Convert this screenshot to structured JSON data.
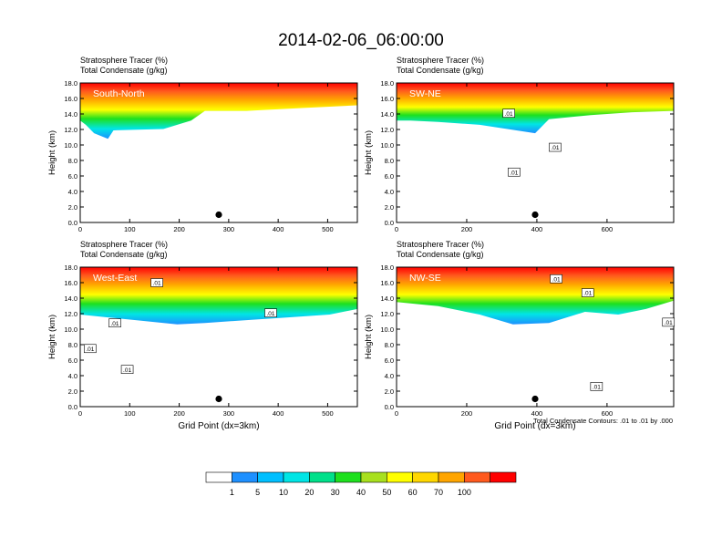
{
  "title": "2014-02-06_06:00:00",
  "colorbar": {
    "colors": [
      "#ffffff",
      "#1e90ff",
      "#00bfff",
      "#00e5e5",
      "#00e08a",
      "#1ee01e",
      "#a8e01e",
      "#ffff00",
      "#ffd700",
      "#ffa500",
      "#ff5a1e",
      "#ff0000"
    ],
    "labels": [
      "1",
      "5",
      "10",
      "20",
      "30",
      "40",
      "50",
      "60",
      "70",
      "100"
    ]
  },
  "contour_note": "Total Condensate Contours: .01 to .01 by .000",
  "chart_data": [
    {
      "type": "heatmap",
      "title_line1": "Stratosphere Tracer   (%)",
      "title_line2": "Total Condensate   (g/kg)",
      "panel_label": "South-North",
      "ylabel": "Height (km)",
      "xlabel": "",
      "xlim": [
        0,
        560
      ],
      "ylim": [
        0,
        18
      ],
      "xticks": [
        "0",
        "100",
        "200",
        "300",
        "400",
        "500"
      ],
      "xtick_values": [
        0,
        100,
        200,
        300,
        400,
        500
      ],
      "yticks": [
        "0.0",
        "2.0",
        "4.0",
        "6.0",
        "8.0",
        "10.0",
        "12.0",
        "14.0",
        "16.0",
        "18.0"
      ],
      "marker_x": 280,
      "contour_labels": []
    },
    {
      "type": "heatmap",
      "title_line1": "Stratosphere Tracer   (%)",
      "title_line2": "Total Condensate   (g/kg)",
      "panel_label": "SW-NE",
      "ylabel": "Height (km)",
      "xlabel": "",
      "xlim": [
        0,
        790
      ],
      "ylim": [
        0,
        18
      ],
      "xticks": [
        "0",
        "200",
        "400",
        "600"
      ],
      "xtick_values": [
        0,
        200,
        400,
        600
      ],
      "yticks": [
        "0.0",
        "2.0",
        "4.0",
        "6.0",
        "8.0",
        "10.0",
        "12.0",
        "14.0",
        "16.0",
        "18.0"
      ],
      "marker_x": 395,
      "contour_labels": [
        {
          "text": ".01",
          "x": 320,
          "y": 14.1
        },
        {
          "text": ".01",
          "x": 335,
          "y": 6.5
        },
        {
          "text": ".01",
          "x": 452,
          "y": 9.7
        }
      ]
    },
    {
      "type": "heatmap",
      "title_line1": "Stratosphere Tracer   (%)",
      "title_line2": "Total Condensate   (g/kg)",
      "panel_label": "West-East",
      "ylabel": "Height (km)",
      "xlabel": "Grid Point (dx=3km)",
      "xlim": [
        0,
        560
      ],
      "ylim": [
        0,
        18
      ],
      "xticks": [
        "0",
        "100",
        "200",
        "300",
        "400",
        "500"
      ],
      "xtick_values": [
        0,
        100,
        200,
        300,
        400,
        500
      ],
      "yticks": [
        "0.0",
        "2.0",
        "4.0",
        "6.0",
        "8.0",
        "10.0",
        "12.0",
        "14.0",
        "16.0",
        "18.0"
      ],
      "marker_x": 280,
      "contour_labels": [
        {
          "text": ".01",
          "x": 155,
          "y": 16.0
        },
        {
          "text": ".01",
          "x": 70,
          "y": 10.8
        },
        {
          "text": ".01",
          "x": 20,
          "y": 7.5
        },
        {
          "text": ".01",
          "x": 95,
          "y": 4.8
        },
        {
          "text": ".01",
          "x": 385,
          "y": 12.1
        }
      ]
    },
    {
      "type": "heatmap",
      "title_line1": "Stratosphere Tracer   (%)",
      "title_line2": "Total Condensate   (g/kg)",
      "panel_label": "NW-SE",
      "ylabel": "Height (km)",
      "xlabel": "Grid Point (dx=3km)",
      "xlim": [
        0,
        790
      ],
      "ylim": [
        0,
        18
      ],
      "xticks": [
        "0",
        "200",
        "400",
        "600"
      ],
      "xtick_values": [
        0,
        200,
        400,
        600
      ],
      "yticks": [
        "0.0",
        "2.0",
        "4.0",
        "6.0",
        "8.0",
        "10.0",
        "12.0",
        "14.0",
        "16.0",
        "18.0"
      ],
      "marker_x": 395,
      "contour_labels": [
        {
          "text": ".01",
          "x": 455,
          "y": 16.5
        },
        {
          "text": ".01",
          "x": 545,
          "y": 14.7
        },
        {
          "text": ".01",
          "x": 775,
          "y": 10.9
        },
        {
          "text": ".01",
          "x": 570,
          "y": 2.6
        }
      ]
    }
  ]
}
